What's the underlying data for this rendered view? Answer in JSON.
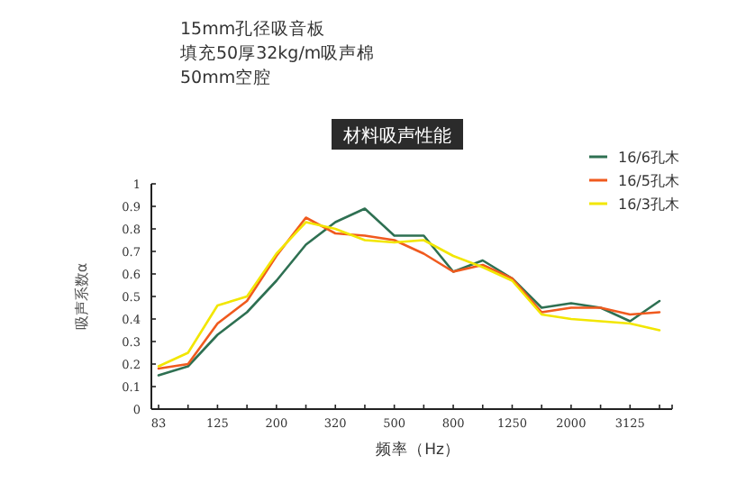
{
  "chart_data": {
    "type": "line",
    "title": "材料吸声性能",
    "annotations": [
      "15mm孔径吸音板",
      "填充50厚32kg/m吸声棉",
      "50mm空腔"
    ],
    "xlabel": "频率（Hz）",
    "ylabel": "吸声系数α",
    "categories": [
      "83",
      null,
      "125",
      null,
      "200",
      null,
      "320",
      null,
      "500",
      null,
      "800",
      null,
      "1250",
      null,
      "2000",
      null,
      "3125",
      null
    ],
    "ylim": [
      0,
      1
    ],
    "yticks": [
      0,
      0.1,
      0.2,
      0.3,
      0.4,
      0.5,
      0.6,
      0.7,
      0.8,
      0.9,
      1
    ],
    "grid": false,
    "legend": "top right",
    "marker": "none",
    "line_style": "solid",
    "series": [
      {
        "name": "16/6孔木",
        "color": "#2e7052",
        "values": [
          0.15,
          0.19,
          0.33,
          0.43,
          0.57,
          0.73,
          0.83,
          0.89,
          0.77,
          0.77,
          0.61,
          0.66,
          0.58,
          0.45,
          0.47,
          0.45,
          0.39,
          0.48
        ]
      },
      {
        "name": "16/5孔木",
        "color": "#f05a1e",
        "values": [
          0.18,
          0.2,
          0.38,
          0.48,
          0.68,
          0.85,
          0.78,
          0.77,
          0.75,
          0.69,
          0.61,
          0.64,
          0.58,
          0.43,
          0.45,
          0.45,
          0.42,
          0.43
        ]
      },
      {
        "name": "16/3孔木",
        "color": "#f2e600",
        "values": [
          0.19,
          0.25,
          0.46,
          0.5,
          0.69,
          0.83,
          0.8,
          0.75,
          0.74,
          0.75,
          0.68,
          0.63,
          0.57,
          0.42,
          0.4,
          0.39,
          0.38,
          0.35
        ]
      }
    ]
  }
}
